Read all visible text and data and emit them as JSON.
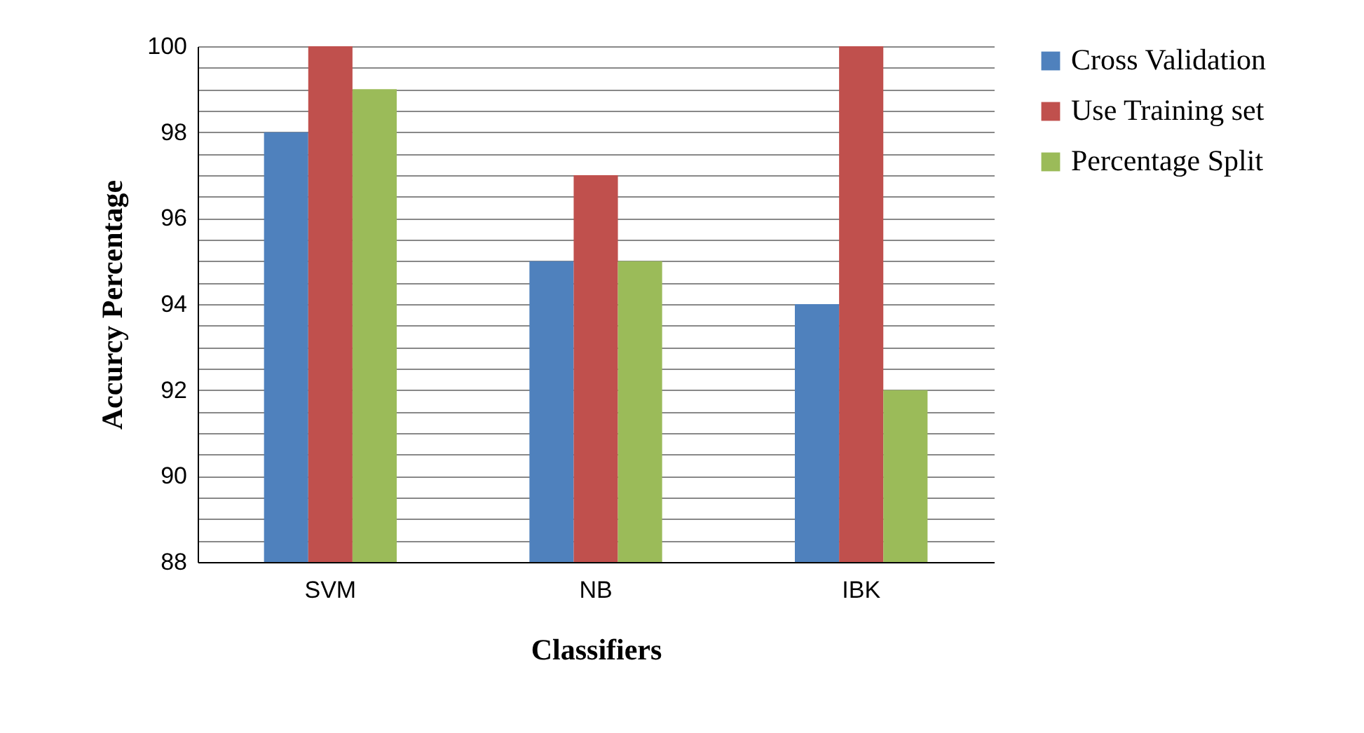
{
  "chart_data": {
    "type": "bar",
    "xlabel": "Classifiers",
    "ylabel": "Accurcy Percentage",
    "categories": [
      "SVM",
      "NB",
      "IBK"
    ],
    "series": [
      {
        "name": "Cross Validation",
        "color": "#4f81bd",
        "values": [
          98,
          95,
          94
        ]
      },
      {
        "name": "Use Training set",
        "color": "#c0504d",
        "values": [
          100,
          97,
          100
        ]
      },
      {
        "name": "Percentage Split",
        "color": "#9bbb59",
        "values": [
          99,
          95,
          92
        ]
      }
    ],
    "ylim": [
      88,
      100
    ],
    "yticks": [
      88,
      {
        "value": 88.5,
        "label": null
      },
      {
        "value": 89,
        "label": null
      },
      {
        "value": 89.5,
        "label": null
      },
      90,
      {
        "value": 90.5,
        "label": null
      },
      {
        "value": 91,
        "label": null
      },
      {
        "value": 91.5,
        "label": null
      },
      92,
      {
        "value": 92.5,
        "label": null
      },
      {
        "value": 93,
        "label": null
      },
      {
        "value": 93.5,
        "label": null
      },
      94,
      {
        "value": 94.5,
        "label": null
      },
      {
        "value": 95,
        "label": null
      },
      {
        "value": 95.5,
        "label": null
      },
      96,
      {
        "value": 96.5,
        "label": null
      },
      {
        "value": 97,
        "label": null
      },
      {
        "value": 97.5,
        "label": null
      },
      98,
      {
        "value": 98.5,
        "label": null
      },
      {
        "value": 99,
        "label": null
      },
      {
        "value": 99.5,
        "label": null
      },
      100
    ],
    "grid": "y",
    "legend": "right"
  }
}
